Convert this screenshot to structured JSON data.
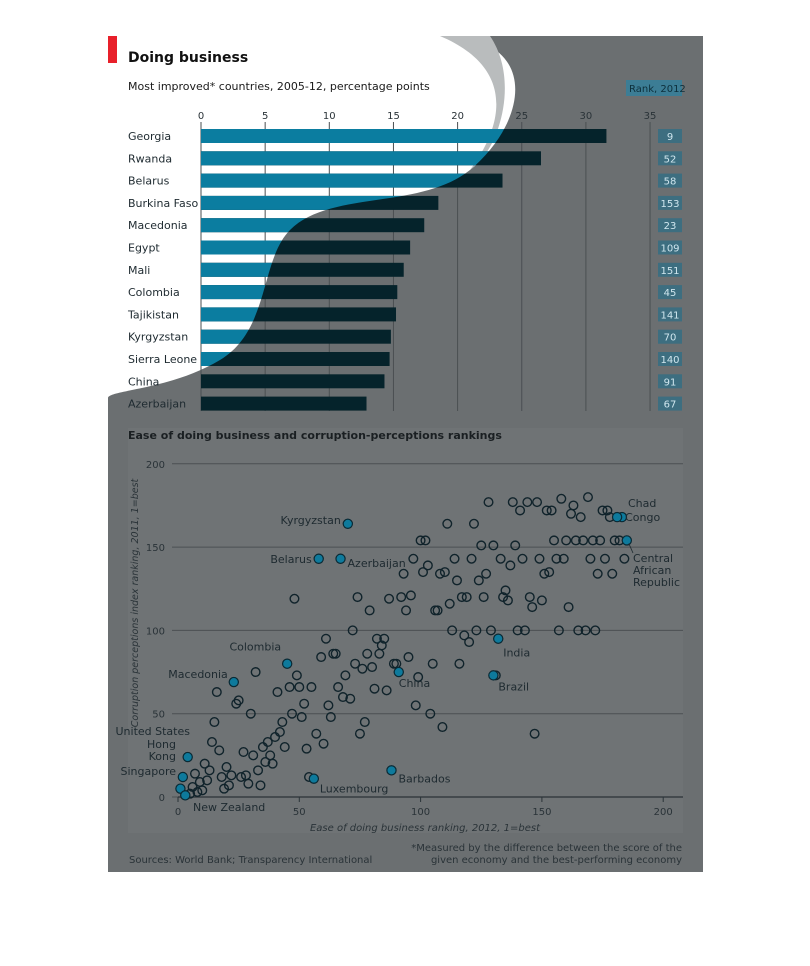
{
  "header": {
    "title": "Doing business",
    "bar_subtitle": "Most improved* countries, 2005-12, percentage points",
    "rank_header": "Rank, 2012"
  },
  "colors": {
    "panel": "#6b6f71",
    "bar_light": "#0b7da0",
    "bar_dark": "#05232b",
    "accent_red": "#e8202a",
    "highlight_point": "#0e7a9c",
    "plot_bg": "#787c7e"
  },
  "chart_data": [
    {
      "type": "bar",
      "orientation": "horizontal",
      "title": "Most improved* countries, 2005-12, percentage points",
      "categories": [
        "Georgia",
        "Rwanda",
        "Belarus",
        "Burkina Faso",
        "Macedonia",
        "Egypt",
        "Mali",
        "Colombia",
        "Tajikistan",
        "Kyrgyzstan",
        "Sierra Leone",
        "China",
        "Azerbaijan"
      ],
      "values": [
        31.6,
        26.5,
        23.5,
        18.5,
        17.4,
        16.3,
        15.8,
        15.3,
        15.2,
        14.8,
        14.7,
        14.3,
        12.9
      ],
      "rank_2012": [
        "9",
        "52",
        "58",
        "153",
        "23",
        "109",
        "151",
        "45",
        "141",
        "70",
        "140",
        "91",
        "67"
      ],
      "xlim": [
        0,
        35
      ],
      "xticks": [
        "0",
        "5",
        "10",
        "15",
        "20",
        "25",
        "30",
        "35"
      ],
      "grid": true
    },
    {
      "type": "scatter",
      "title": "Ease of doing business and corruption-perceptions rankings",
      "xlabel": "Ease of doing business ranking, 2012, 1=best",
      "ylabel": "Corruption perceptions index ranking, 2011, 1=best",
      "xlim": [
        0,
        200
      ],
      "ylim": [
        0,
        200
      ],
      "xticks": [
        "0",
        "50",
        "100",
        "150",
        "200"
      ],
      "yticks": [
        "0",
        "50",
        "100",
        "150",
        "200"
      ],
      "grid": true,
      "labeled_points": [
        {
          "label": "Kyrgyzstan",
          "x": 70,
          "y": 164
        },
        {
          "label": "Belarus",
          "x": 58,
          "y": 143
        },
        {
          "label": "Azerbaijan",
          "x": 67,
          "y": 143
        },
        {
          "label": "Colombia",
          "x": 45,
          "y": 80
        },
        {
          "label": "Macedonia",
          "x": 23,
          "y": 69
        },
        {
          "label": "India",
          "x": 132,
          "y": 95
        },
        {
          "label": "China",
          "x": 91,
          "y": 75
        },
        {
          "label": "Brazil",
          "x": 130,
          "y": 73
        },
        {
          "label": "United States",
          "x": 4,
          "y": 24
        },
        {
          "label": "Hong Kong",
          "x": 2,
          "y": 12
        },
        {
          "label": "Singapore",
          "x": 1,
          "y": 5
        },
        {
          "label": "New Zealand",
          "x": 3,
          "y": 1
        },
        {
          "label": "Luxembourg",
          "x": 56,
          "y": 11
        },
        {
          "label": "Barbados",
          "x": 88,
          "y": 16
        },
        {
          "label": "Chad",
          "x": 183,
          "y": 168
        },
        {
          "label": "Congo",
          "x": 181,
          "y": 168
        },
        {
          "label": "Central African Republic",
          "x": 185,
          "y": 154
        }
      ],
      "points": [
        [
          1,
          5
        ],
        [
          2,
          12
        ],
        [
          3,
          1
        ],
        [
          4,
          24
        ],
        [
          5,
          2
        ],
        [
          6,
          6
        ],
        [
          7,
          14
        ],
        [
          8,
          3
        ],
        [
          9,
          9
        ],
        [
          10,
          4
        ],
        [
          11,
          20
        ],
        [
          12,
          10
        ],
        [
          13,
          16
        ],
        [
          14,
          33
        ],
        [
          15,
          45
        ],
        [
          16,
          63
        ],
        [
          17,
          28
        ],
        [
          18,
          12
        ],
        [
          19,
          5
        ],
        [
          20,
          18
        ],
        [
          21,
          7
        ],
        [
          22,
          13
        ],
        [
          23,
          69
        ],
        [
          24,
          56
        ],
        [
          25,
          58
        ],
        [
          26,
          12
        ],
        [
          27,
          27
        ],
        [
          28,
          13
        ],
        [
          29,
          8
        ],
        [
          30,
          50
        ],
        [
          31,
          25
        ],
        [
          32,
          75
        ],
        [
          33,
          16
        ],
        [
          34,
          7
        ],
        [
          35,
          30
        ],
        [
          36,
          21
        ],
        [
          37,
          33
        ],
        [
          38,
          25
        ],
        [
          39,
          20
        ],
        [
          40,
          36
        ],
        [
          41,
          63
        ],
        [
          42,
          39
        ],
        [
          43,
          45
        ],
        [
          44,
          30
        ],
        [
          45,
          80
        ],
        [
          46,
          66
        ],
        [
          47,
          50
        ],
        [
          48,
          119
        ],
        [
          49,
          73
        ],
        [
          50,
          66
        ],
        [
          51,
          48
        ],
        [
          52,
          56
        ],
        [
          53,
          29
        ],
        [
          54,
          12
        ],
        [
          55,
          66
        ],
        [
          56,
          11
        ],
        [
          57,
          38
        ],
        [
          58,
          143
        ],
        [
          59,
          84
        ],
        [
          60,
          32
        ],
        [
          61,
          95
        ],
        [
          62,
          55
        ],
        [
          63,
          48
        ],
        [
          64,
          86
        ],
        [
          65,
          86
        ],
        [
          66,
          66
        ],
        [
          67,
          143
        ],
        [
          68,
          60
        ],
        [
          69,
          73
        ],
        [
          70,
          164
        ],
        [
          71,
          59
        ],
        [
          72,
          100
        ],
        [
          73,
          80
        ],
        [
          74,
          120
        ],
        [
          75,
          38
        ],
        [
          76,
          77
        ],
        [
          77,
          45
        ],
        [
          78,
          86
        ],
        [
          79,
          112
        ],
        [
          80,
          78
        ],
        [
          81,
          65
        ],
        [
          82,
          95
        ],
        [
          83,
          86
        ],
        [
          84,
          91
        ],
        [
          85,
          95
        ],
        [
          86,
          64
        ],
        [
          87,
          119
        ],
        [
          88,
          16
        ],
        [
          89,
          80
        ],
        [
          90,
          80
        ],
        [
          91,
          75
        ],
        [
          92,
          120
        ],
        [
          93,
          134
        ],
        [
          94,
          112
        ],
        [
          95,
          84
        ],
        [
          96,
          121
        ],
        [
          97,
          143
        ],
        [
          98,
          55
        ],
        [
          99,
          72
        ],
        [
          100,
          154
        ],
        [
          101,
          135
        ],
        [
          102,
          154
        ],
        [
          103,
          139
        ],
        [
          104,
          50
        ],
        [
          105,
          80
        ],
        [
          106,
          112
        ],
        [
          107,
          112
        ],
        [
          108,
          134
        ],
        [
          109,
          42
        ],
        [
          110,
          135
        ],
        [
          111,
          164
        ],
        [
          112,
          116
        ],
        [
          113,
          100
        ],
        [
          114,
          143
        ],
        [
          115,
          130
        ],
        [
          116,
          80
        ],
        [
          117,
          120
        ],
        [
          118,
          97
        ],
        [
          119,
          120
        ],
        [
          120,
          93
        ],
        [
          121,
          143
        ],
        [
          122,
          164
        ],
        [
          123,
          100
        ],
        [
          124,
          130
        ],
        [
          125,
          151
        ],
        [
          126,
          120
        ],
        [
          127,
          134
        ],
        [
          128,
          177
        ],
        [
          129,
          100
        ],
        [
          130,
          151
        ],
        [
          131,
          73
        ],
        [
          132,
          95
        ],
        [
          133,
          143
        ],
        [
          134,
          120
        ],
        [
          135,
          124
        ],
        [
          136,
          118
        ],
        [
          137,
          139
        ],
        [
          138,
          177
        ],
        [
          139,
          151
        ],
        [
          140,
          100
        ],
        [
          141,
          172
        ],
        [
          142,
          143
        ],
        [
          143,
          100
        ],
        [
          144,
          177
        ],
        [
          145,
          120
        ],
        [
          146,
          114
        ],
        [
          147,
          38
        ],
        [
          148,
          177
        ],
        [
          149,
          143
        ],
        [
          150,
          118
        ],
        [
          151,
          134
        ],
        [
          152,
          172
        ],
        [
          153,
          135
        ],
        [
          154,
          172
        ],
        [
          155,
          154
        ],
        [
          156,
          143
        ],
        [
          157,
          100
        ],
        [
          158,
          179
        ],
        [
          159,
          143
        ],
        [
          160,
          154
        ],
        [
          161,
          114
        ],
        [
          162,
          170
        ],
        [
          163,
          175
        ],
        [
          164,
          154
        ],
        [
          165,
          100
        ],
        [
          166,
          168
        ],
        [
          167,
          154
        ],
        [
          168,
          100
        ],
        [
          169,
          180
        ],
        [
          170,
          143
        ],
        [
          171,
          154
        ],
        [
          172,
          100
        ],
        [
          173,
          134
        ],
        [
          174,
          154
        ],
        [
          175,
          172
        ],
        [
          176,
          143
        ],
        [
          177,
          172
        ],
        [
          178,
          168
        ],
        [
          179,
          134
        ],
        [
          180,
          154
        ],
        [
          181,
          168
        ],
        [
          182,
          154
        ],
        [
          183,
          168
        ],
        [
          184,
          143
        ],
        [
          185,
          154
        ]
      ]
    }
  ],
  "footer": {
    "sources": "Sources: World Bank; Transparency International",
    "note_line1": "*Measured by the difference between the score of the",
    "note_line2": "given economy and the best-performing economy"
  }
}
